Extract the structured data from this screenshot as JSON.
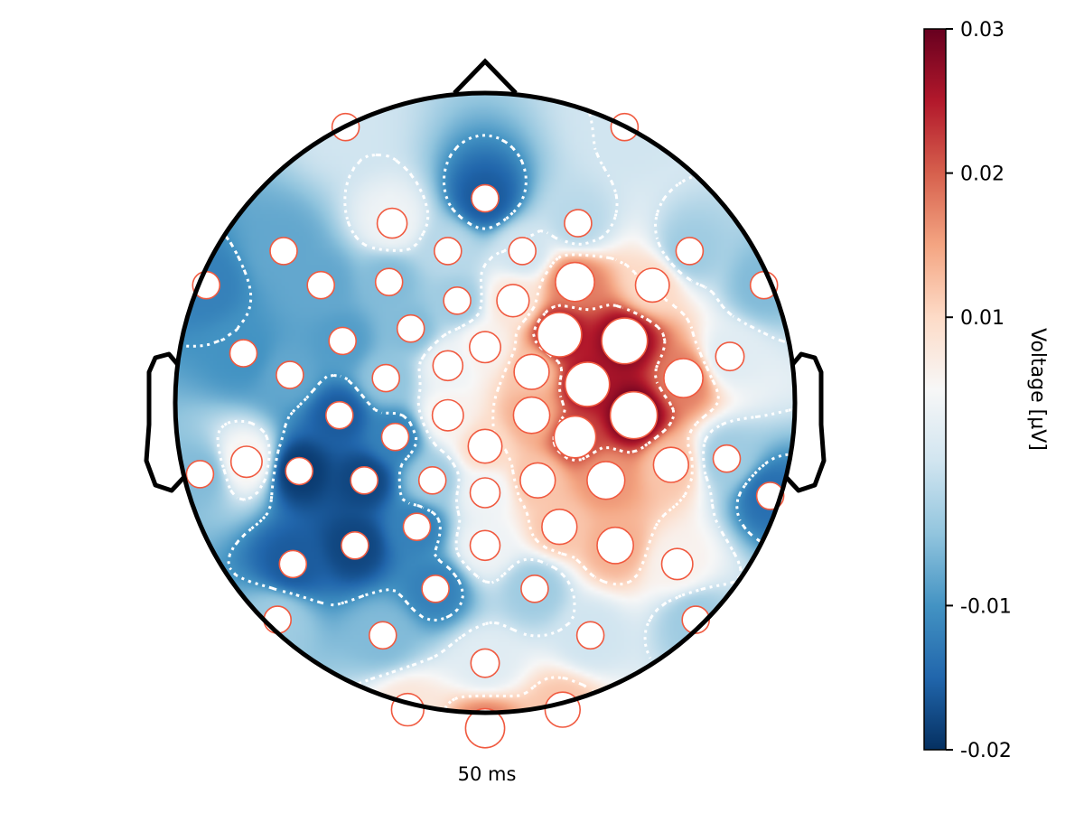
{
  "chart_data": {
    "type": "heatmap",
    "subtype": "eeg-topoplot",
    "time_label": "50 ms",
    "colorbar": {
      "label": "Voltage [µV]",
      "range": [
        -0.02,
        0.03
      ],
      "ticks": [
        0.03,
        0.02,
        0.01,
        -0.01,
        -0.02
      ],
      "tick_labels": [
        "0.03",
        "0.02",
        "0.01",
        "-0.01",
        "-0.02"
      ],
      "colormap": "RdBu_r",
      "colormap_stops": [
        "#053061",
        "#2166ac",
        "#4393c3",
        "#92c5de",
        "#d1e5f0",
        "#f7f7f7",
        "#fddbc7",
        "#f4a582",
        "#d6604d",
        "#b2182b",
        "#67001f"
      ]
    },
    "contour_style": "white dotted",
    "electrode_style": {
      "fill": "#ffffff",
      "stroke": "#f05a40"
    },
    "electrodes": [
      {
        "x": -0.45,
        "y": 0.89,
        "v": 0.0
      },
      {
        "x": 0.45,
        "y": 0.89,
        "v": 0.0
      },
      {
        "x": 0.0,
        "y": 0.66,
        "v": -0.016
      },
      {
        "x": -0.3,
        "y": 0.58,
        "v": 0.004
      },
      {
        "x": 0.3,
        "y": 0.58,
        "v": -0.002
      },
      {
        "x": -0.65,
        "y": 0.49,
        "v": -0.008
      },
      {
        "x": -0.12,
        "y": 0.49,
        "v": -0.002
      },
      {
        "x": 0.12,
        "y": 0.49,
        "v": 0.0
      },
      {
        "x": 0.66,
        "y": 0.49,
        "v": -0.004
      },
      {
        "x": -0.9,
        "y": 0.38,
        "v": -0.012
      },
      {
        "x": -0.53,
        "y": 0.38,
        "v": -0.008
      },
      {
        "x": -0.31,
        "y": 0.39,
        "v": -0.006
      },
      {
        "x": 0.29,
        "y": 0.39,
        "v": 0.018
      },
      {
        "x": 0.54,
        "y": 0.38,
        "v": 0.01
      },
      {
        "x": 0.9,
        "y": 0.38,
        "v": -0.006
      },
      {
        "x": -0.09,
        "y": 0.33,
        "v": -0.004
      },
      {
        "x": 0.09,
        "y": 0.33,
        "v": 0.008
      },
      {
        "x": -0.46,
        "y": 0.2,
        "v": -0.009
      },
      {
        "x": -0.24,
        "y": 0.24,
        "v": -0.006
      },
      {
        "x": 0.0,
        "y": 0.18,
        "v": 0.006
      },
      {
        "x": 0.24,
        "y": 0.22,
        "v": 0.026
      },
      {
        "x": 0.45,
        "y": 0.2,
        "v": 0.028
      },
      {
        "x": 0.79,
        "y": 0.15,
        "v": 0.002
      },
      {
        "x": -0.78,
        "y": 0.16,
        "v": -0.01
      },
      {
        "x": -0.63,
        "y": 0.09,
        "v": -0.008
      },
      {
        "x": -0.32,
        "y": 0.08,
        "v": -0.005
      },
      {
        "x": -0.12,
        "y": 0.12,
        "v": 0.004
      },
      {
        "x": 0.15,
        "y": 0.1,
        "v": 0.012
      },
      {
        "x": 0.33,
        "y": 0.06,
        "v": 0.026
      },
      {
        "x": 0.64,
        "y": 0.08,
        "v": 0.018
      },
      {
        "x": -0.47,
        "y": -0.04,
        "v": -0.016
      },
      {
        "x": -0.12,
        "y": -0.04,
        "v": 0.006
      },
      {
        "x": 0.15,
        "y": -0.04,
        "v": 0.014
      },
      {
        "x": 0.48,
        "y": -0.04,
        "v": 0.03
      },
      {
        "x": -0.29,
        "y": -0.11,
        "v": -0.012
      },
      {
        "x": 0.0,
        "y": -0.14,
        "v": 0.01
      },
      {
        "x": 0.29,
        "y": -0.11,
        "v": 0.022
      },
      {
        "x": -0.92,
        "y": -0.23,
        "v": -0.006
      },
      {
        "x": -0.77,
        "y": -0.19,
        "v": 0.006
      },
      {
        "x": -0.6,
        "y": -0.22,
        "v": -0.019
      },
      {
        "x": -0.39,
        "y": -0.25,
        "v": -0.018
      },
      {
        "x": -0.17,
        "y": -0.25,
        "v": -0.004
      },
      {
        "x": 0.17,
        "y": -0.25,
        "v": 0.012
      },
      {
        "x": 0.39,
        "y": -0.25,
        "v": 0.016
      },
      {
        "x": 0.6,
        "y": -0.2,
        "v": 0.012
      },
      {
        "x": 0.78,
        "y": -0.18,
        "v": -0.004
      },
      {
        "x": 0.92,
        "y": -0.3,
        "v": -0.014
      },
      {
        "x": 0.0,
        "y": -0.29,
        "v": 0.004
      },
      {
        "x": -0.22,
        "y": -0.4,
        "v": -0.012
      },
      {
        "x": 0.24,
        "y": -0.4,
        "v": 0.012
      },
      {
        "x": -0.42,
        "y": -0.46,
        "v": -0.018
      },
      {
        "x": 0.0,
        "y": -0.46,
        "v": 0.004
      },
      {
        "x": 0.42,
        "y": -0.46,
        "v": 0.014
      },
      {
        "x": -0.62,
        "y": -0.52,
        "v": -0.016
      },
      {
        "x": 0.62,
        "y": -0.52,
        "v": 0.006
      },
      {
        "x": -0.16,
        "y": -0.6,
        "v": -0.012
      },
      {
        "x": 0.16,
        "y": -0.6,
        "v": -0.004
      },
      {
        "x": -0.67,
        "y": -0.7,
        "v": -0.004
      },
      {
        "x": -0.33,
        "y": -0.75,
        "v": -0.006
      },
      {
        "x": 0.34,
        "y": -0.75,
        "v": 0.0
      },
      {
        "x": 0.68,
        "y": -0.7,
        "v": -0.004
      },
      {
        "x": 0.0,
        "y": -0.84,
        "v": 0.002
      },
      {
        "x": -0.25,
        "y": -0.99,
        "v": 0.008
      },
      {
        "x": 0.25,
        "y": -0.99,
        "v": 0.012
      },
      {
        "x": 0.0,
        "y": -1.05,
        "v": 0.018
      }
    ]
  }
}
